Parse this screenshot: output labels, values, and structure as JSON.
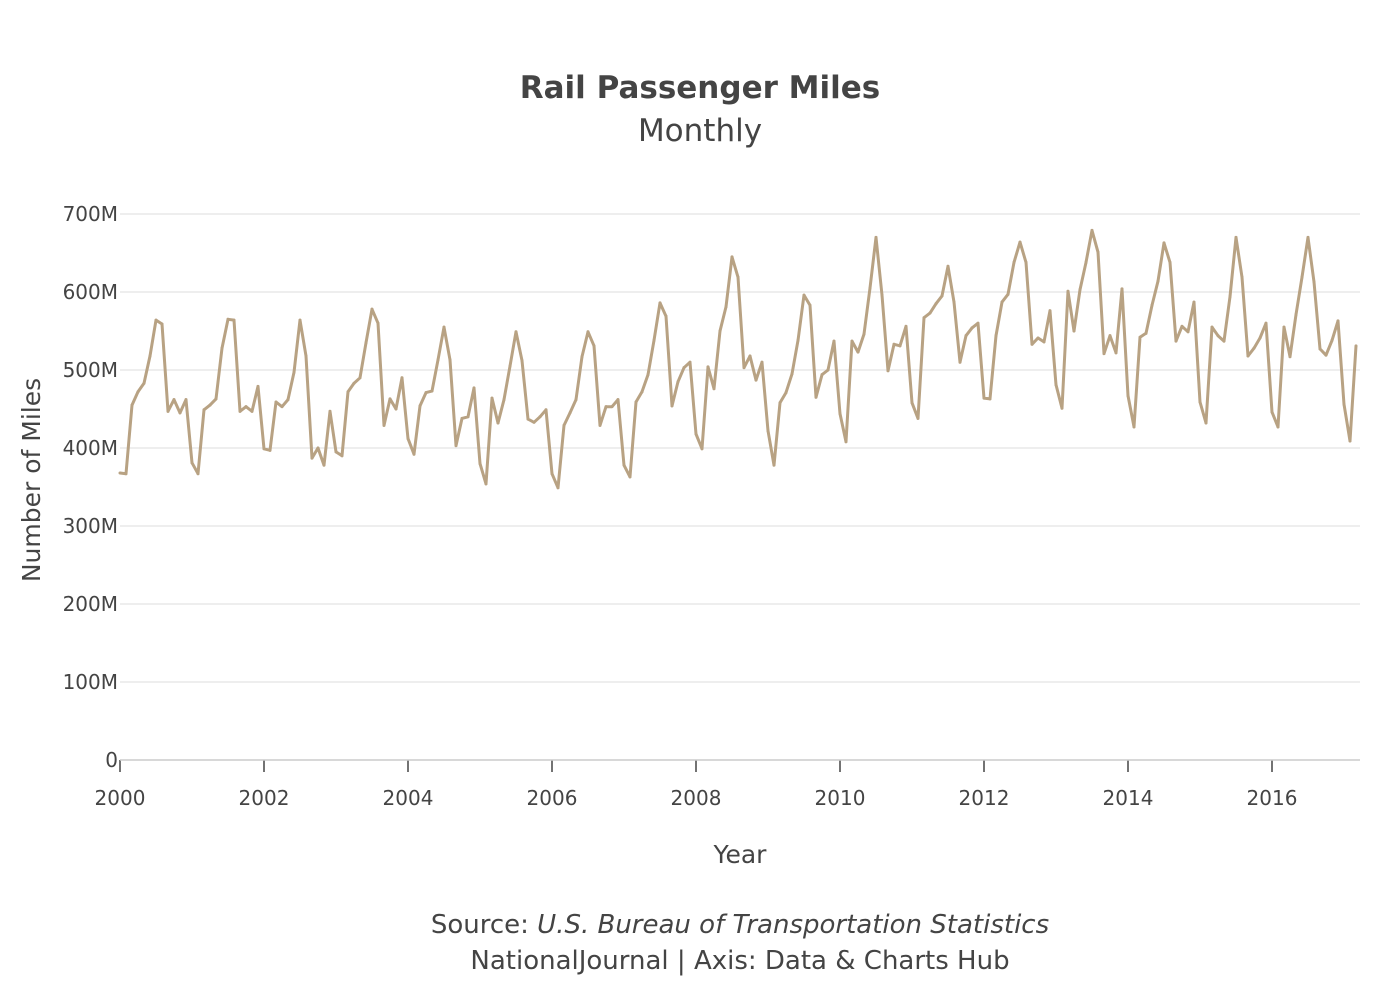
{
  "chart_data": {
    "type": "line",
    "title": "Rail Passenger Miles",
    "subtitle": "Monthly",
    "xlabel": "Year",
    "ylabel": "Number of Miles",
    "x_ticks": [
      "2000",
      "2002",
      "2004",
      "2006",
      "2008",
      "2010",
      "2012",
      "2014",
      "2016"
    ],
    "y_ticks": [
      "0",
      "100M",
      "200M",
      "300M",
      "400M",
      "500M",
      "600M",
      "700M"
    ],
    "ylim": [
      0,
      750
    ],
    "xlim": [
      "2000-01",
      "2017-03"
    ],
    "grid": true,
    "line_color": "#b8a283",
    "y_unit": "millions of miles",
    "x": [
      "2000-01",
      "2000-02",
      "2000-03",
      "2000-04",
      "2000-05",
      "2000-06",
      "2000-07",
      "2000-08",
      "2000-09",
      "2000-10",
      "2000-11",
      "2000-12",
      "2001-01",
      "2001-02",
      "2001-03",
      "2001-04",
      "2001-05",
      "2001-06",
      "2001-07",
      "2001-08",
      "2001-09",
      "2001-10",
      "2001-11",
      "2001-12",
      "2002-01",
      "2002-02",
      "2002-03",
      "2002-04",
      "2002-05",
      "2002-06",
      "2002-07",
      "2002-08",
      "2002-09",
      "2002-10",
      "2002-11",
      "2002-12",
      "2003-01",
      "2003-02",
      "2003-03",
      "2003-04",
      "2003-05",
      "2003-06",
      "2003-07",
      "2003-08",
      "2003-09",
      "2003-10",
      "2003-11",
      "2003-12",
      "2004-01",
      "2004-02",
      "2004-03",
      "2004-04",
      "2004-05",
      "2004-06",
      "2004-07",
      "2004-08",
      "2004-09",
      "2004-10",
      "2004-11",
      "2004-12",
      "2005-01",
      "2005-02",
      "2005-03",
      "2005-04",
      "2005-05",
      "2005-06",
      "2005-07",
      "2005-08",
      "2005-09",
      "2005-10",
      "2005-11",
      "2005-12",
      "2006-01",
      "2006-02",
      "2006-03",
      "2006-04",
      "2006-05",
      "2006-06",
      "2006-07",
      "2006-08",
      "2006-09",
      "2006-10",
      "2006-11",
      "2006-12",
      "2007-01",
      "2007-02",
      "2007-03",
      "2007-04",
      "2007-05",
      "2007-06",
      "2007-07",
      "2007-08",
      "2007-09",
      "2007-10",
      "2007-11",
      "2007-12",
      "2008-01",
      "2008-02",
      "2008-03",
      "2008-04",
      "2008-05",
      "2008-06",
      "2008-07",
      "2008-08",
      "2008-09",
      "2008-10",
      "2008-11",
      "2008-12",
      "2009-01",
      "2009-02",
      "2009-03",
      "2009-04",
      "2009-05",
      "2009-06",
      "2009-07",
      "2009-08",
      "2009-09",
      "2009-10",
      "2009-11",
      "2009-12",
      "2010-01",
      "2010-02",
      "2010-03",
      "2010-04",
      "2010-05",
      "2010-06",
      "2010-07",
      "2010-08",
      "2010-09",
      "2010-10",
      "2010-11",
      "2010-12",
      "2011-01",
      "2011-02",
      "2011-03",
      "2011-04",
      "2011-05",
      "2011-06",
      "2011-07",
      "2011-08",
      "2011-09",
      "2011-10",
      "2011-11",
      "2011-12",
      "2012-01",
      "2012-02",
      "2012-03",
      "2012-04",
      "2012-05",
      "2012-06",
      "2012-07",
      "2012-08",
      "2012-09",
      "2012-10",
      "2012-11",
      "2012-12",
      "2013-01",
      "2013-02",
      "2013-03",
      "2013-04",
      "2013-05",
      "2013-06",
      "2013-07",
      "2013-08",
      "2013-09",
      "2013-10",
      "2013-11",
      "2013-12",
      "2014-01",
      "2014-02",
      "2014-03",
      "2014-04",
      "2014-05",
      "2014-06",
      "2014-07",
      "2014-08",
      "2014-09",
      "2014-10",
      "2014-11",
      "2014-12",
      "2015-01",
      "2015-02",
      "2015-03",
      "2015-04",
      "2015-05",
      "2015-06",
      "2015-07",
      "2015-08",
      "2015-09",
      "2015-10",
      "2015-11",
      "2015-12",
      "2016-01",
      "2016-02",
      "2016-03",
      "2016-04",
      "2016-05",
      "2016-06",
      "2016-07",
      "2016-08",
      "2016-09",
      "2016-10",
      "2016-11",
      "2016-12",
      "2017-01",
      "2017-02",
      "2017-03"
    ],
    "values": [
      368,
      367,
      455,
      472,
      483,
      518,
      564,
      559,
      447,
      462,
      445,
      462,
      381,
      367,
      449,
      455,
      463,
      528,
      565,
      564,
      447,
      453,
      447,
      479,
      399,
      397,
      459,
      453,
      462,
      497,
      564,
      518,
      387,
      400,
      378,
      447,
      395,
      390,
      472,
      483,
      490,
      535,
      578,
      560,
      429,
      463,
      450,
      490,
      412,
      392,
      454,
      471,
      473,
      513,
      555,
      513,
      403,
      438,
      440,
      477,
      380,
      354,
      464,
      432,
      462,
      505,
      549,
      512,
      437,
      433,
      440,
      449,
      367,
      349,
      429,
      445,
      462,
      517,
      549,
      531,
      429,
      453,
      453,
      462,
      378,
      363,
      459,
      472,
      494,
      538,
      586,
      569,
      454,
      485,
      503,
      510,
      418,
      399,
      504,
      476,
      550,
      581,
      645,
      619,
      503,
      518,
      487,
      510,
      422,
      378,
      458,
      471,
      495,
      538,
      596,
      583,
      465,
      494,
      500,
      537,
      444,
      408,
      537,
      523,
      546,
      605,
      670,
      596,
      499,
      533,
      531,
      556,
      458,
      438,
      567,
      573,
      585,
      595,
      633,
      587,
      510,
      544,
      554,
      560,
      464,
      463,
      544,
      587,
      597,
      638,
      664,
      638,
      533,
      541,
      536,
      576,
      481,
      451,
      601,
      550,
      603,
      638,
      679,
      651,
      521,
      544,
      522,
      604,
      467,
      427,
      542,
      547,
      583,
      614,
      663,
      638,
      537,
      556,
      549,
      587,
      459,
      432,
      555,
      544,
      537,
      594,
      670,
      619,
      518,
      528,
      541,
      560,
      446,
      427,
      555,
      517,
      571,
      619,
      670,
      613,
      527,
      519,
      538,
      563,
      456,
      409,
      531
    ]
  },
  "footer": {
    "source_prefix": "Source: ",
    "source_name": "U.S. Bureau of Transportation Statistics",
    "credit": "NationalJournal | Axis: Data & Charts Hub"
  }
}
